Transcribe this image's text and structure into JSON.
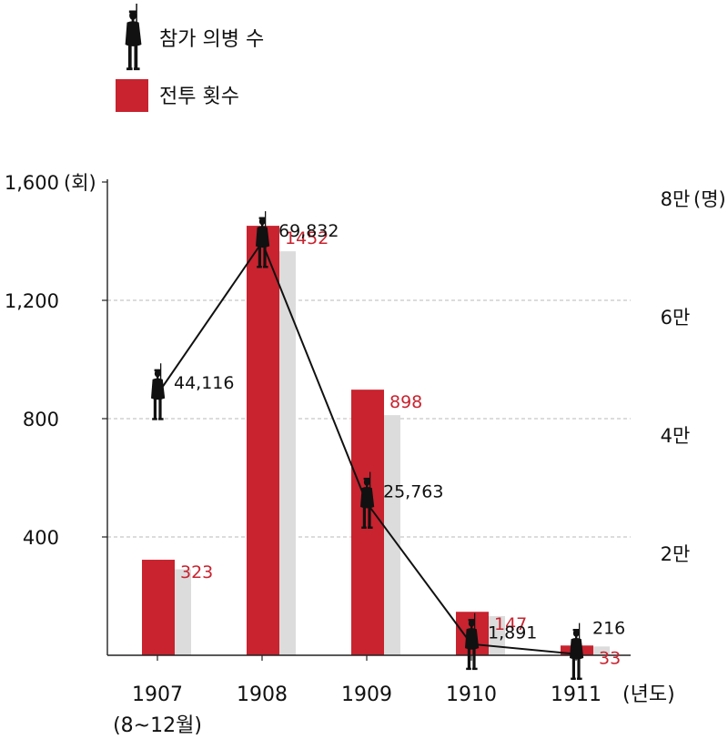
{
  "chart_data": {
    "type": "bar",
    "legend": [
      {
        "label": "참가 의병 수",
        "marker": "soldier-icon",
        "series": "participants"
      },
      {
        "label": "전투 횟수",
        "marker": "red-square",
        "color": "#c8232f",
        "series": "battles"
      }
    ],
    "categories": [
      "1907",
      "1908",
      "1909",
      "1910",
      "1911"
    ],
    "category_sublabels": [
      "(8~12월)",
      "",
      "",
      "",
      ""
    ],
    "x_unit": "(년도)",
    "left_axis": {
      "unit": "(회)",
      "ylim": [
        0,
        1600
      ],
      "ticks": [
        400,
        800,
        1200,
        1600
      ],
      "tick_labels": [
        "400",
        "800",
        "1,200",
        "1,600"
      ]
    },
    "right_axis": {
      "unit": "(명)",
      "ylim": [
        0,
        80000
      ],
      "ticks": [
        20000,
        40000,
        60000,
        80000
      ],
      "tick_labels": [
        "2만",
        "4만",
        "6만",
        "8만"
      ]
    },
    "series": [
      {
        "key": "battles",
        "name": "전투 횟수",
        "type": "bar",
        "axis": "left",
        "color": "#c8232f",
        "shadow_color": "#dcdcdc",
        "values": [
          323,
          1452,
          898,
          147,
          33
        ],
        "labels": [
          "323",
          "1452",
          "898",
          "147",
          "33"
        ]
      },
      {
        "key": "participants",
        "name": "참가 의병 수",
        "type": "line",
        "axis": "right",
        "color": "#111111",
        "values": [
          44116,
          69832,
          25763,
          1891,
          216
        ],
        "labels": [
          "44,116",
          "69,832",
          "25,763",
          "1,891",
          "216"
        ]
      }
    ],
    "grid": "dashed, right-axis ticks",
    "legend_position": "top-left"
  }
}
